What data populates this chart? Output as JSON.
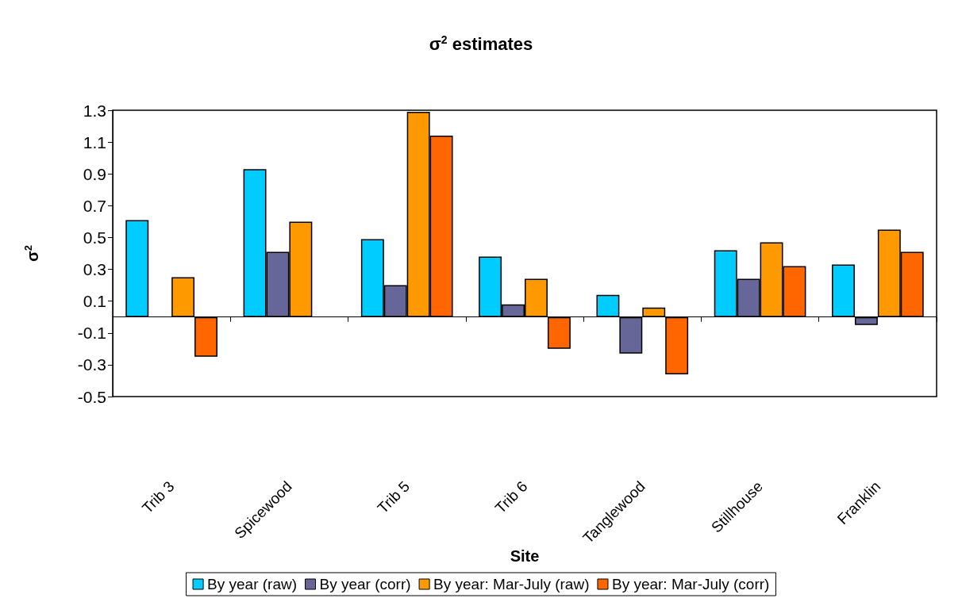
{
  "chart_data": {
    "type": "bar",
    "title": "σ$^{2}$ estimates",
    "xlabel": "Site",
    "ylabel": "σ$^{2}$",
    "categories": [
      "Trib 3",
      "Spicewood",
      "Trib 5",
      "Trib 6",
      "Tanglewood",
      "Stillhouse",
      "Franklin"
    ],
    "series": [
      {
        "name": "By year (raw)",
        "color": "#00ccff",
        "values": [
          0.61,
          0.93,
          0.49,
          0.38,
          0.14,
          0.42,
          0.33
        ]
      },
      {
        "name": "By year (corr)",
        "color": "#666699",
        "values": [
          null,
          0.41,
          0.2,
          0.08,
          -0.23,
          0.24,
          -0.05
        ]
      },
      {
        "name": "By year: Mar-July (raw)",
        "color": "#ff9900",
        "values": [
          0.25,
          0.6,
          1.29,
          0.24,
          0.06,
          0.47,
          0.55
        ]
      },
      {
        "name": "By year: Mar-July (corr)",
        "color": "#ff6600",
        "values": [
          -0.25,
          null,
          1.14,
          -0.2,
          -0.36,
          0.32,
          0.41
        ]
      }
    ],
    "ylim": [
      -0.5,
      1.3
    ],
    "yticks": [
      -0.5,
      -0.3,
      -0.1,
      0.1,
      0.3,
      0.5,
      0.7,
      0.9,
      1.1,
      1.3
    ],
    "grid": false,
    "legend": "bottom"
  }
}
